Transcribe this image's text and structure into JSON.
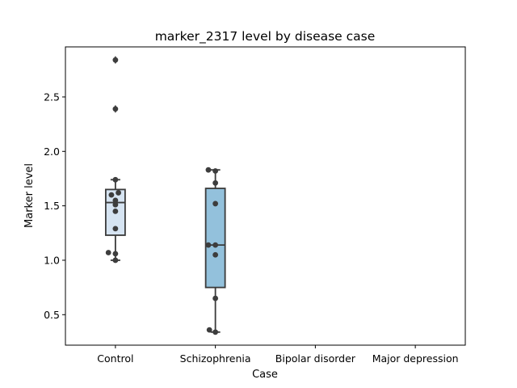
{
  "chart_data": {
    "type": "box",
    "title": "marker_2317 level by disease case",
    "xlabel": "Case",
    "ylabel": "Marker level",
    "categories": [
      "Control",
      "Schizophrenia",
      "Bipolar disorder",
      "Major depression"
    ],
    "ylim": [
      0.22,
      2.96
    ],
    "yticks": [
      0.5,
      1.0,
      1.5,
      2.0,
      2.5
    ],
    "ytick_labels": [
      "0.5",
      "1.0",
      "1.5",
      "2.0",
      "2.5"
    ],
    "grid": false,
    "legend": "none",
    "box_colors": [
      "#d6e4f2",
      "#93c1dc"
    ],
    "boxes": [
      {
        "category": "Control",
        "whisker_low": 1.0,
        "q1": 1.23,
        "median": 1.53,
        "q3": 1.65,
        "whisker_high": 1.74,
        "outliers": [
          2.39,
          2.84
        ]
      },
      {
        "category": "Schizophrenia",
        "whisker_low": 0.34,
        "q1": 0.75,
        "median": 1.14,
        "q3": 1.66,
        "whisker_high": 1.83,
        "outliers": []
      }
    ],
    "points": [
      {
        "category": "Control",
        "values": [
          1.0,
          1.06,
          1.07,
          1.29,
          1.45,
          1.51,
          1.55,
          1.6,
          1.62,
          1.74,
          2.39,
          2.84
        ],
        "offsets": [
          0.0,
          0.0,
          -0.07,
          0.0,
          0.0,
          0.0,
          0.0,
          -0.04,
          0.03,
          0.0,
          0.0,
          0.0
        ]
      },
      {
        "category": "Schizophrenia",
        "values": [
          0.34,
          0.36,
          0.65,
          1.05,
          1.14,
          1.14,
          1.52,
          1.71,
          1.82,
          1.83
        ],
        "offsets": [
          0.0,
          -0.06,
          0.0,
          0.0,
          -0.07,
          0.0,
          0.0,
          0.0,
          0.0,
          -0.07
        ]
      }
    ]
  },
  "colors": {
    "box_edge": "#3a3a3a",
    "point": "#3d3d3d",
    "axes": "#000000"
  }
}
